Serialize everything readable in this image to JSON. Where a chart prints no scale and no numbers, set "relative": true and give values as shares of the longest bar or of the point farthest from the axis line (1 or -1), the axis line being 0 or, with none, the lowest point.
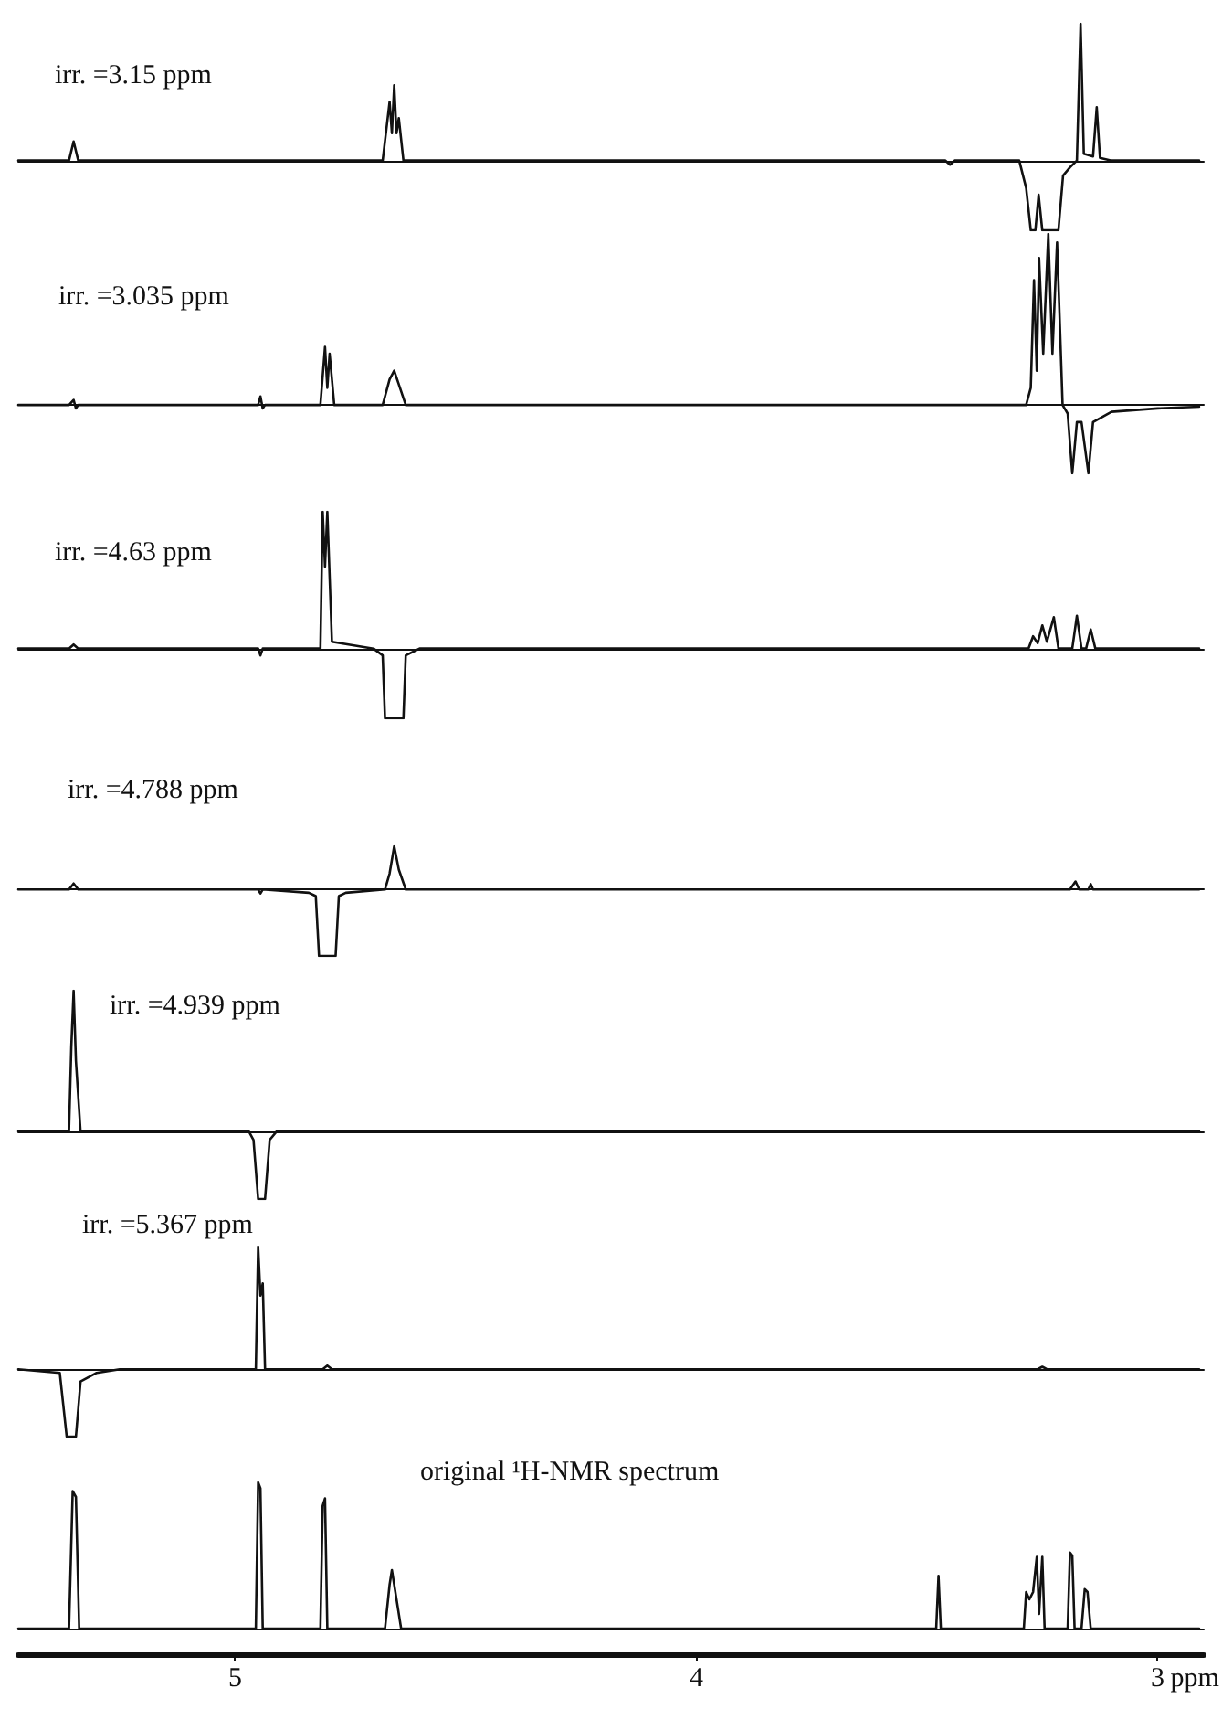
{
  "chart_data": [
    {
      "type": "line",
      "title": "irr. =3.15 ppm",
      "color": "#111111",
      "relative": true,
      "xlim": [
        5.47,
        2.9
      ],
      "tick_labels": false,
      "x": [
        5.47,
        5.36,
        5.35,
        5.34,
        4.68,
        4.665,
        4.66,
        4.655,
        4.65,
        4.645,
        4.635,
        3.46,
        3.45,
        3.44,
        3.3,
        3.285,
        3.275,
        3.265,
        3.258,
        3.25,
        3.215,
        3.205,
        3.19,
        3.175,
        3.167,
        3.16,
        3.14,
        3.132,
        3.125,
        3.1,
        2.91
      ],
      "values": [
        0,
        0,
        0.14,
        0,
        0,
        0.43,
        0.2,
        0.55,
        0.2,
        0.31,
        0,
        0,
        -0.03,
        0,
        0,
        -0.2,
        -0.51,
        -0.51,
        -0.25,
        -0.51,
        -0.51,
        -0.11,
        -0.05,
        0,
        1,
        0.05,
        0.03,
        0.39,
        0.02,
        0,
        0
      ]
    },
    {
      "type": "line",
      "title": "irr. =3.035 ppm",
      "color": "#111111",
      "relative": true,
      "xlim": [
        5.47,
        2.9
      ],
      "tick_labels": false,
      "x": [
        5.47,
        5.36,
        5.35,
        5.345,
        5.34,
        4.95,
        4.945,
        4.94,
        4.935,
        4.815,
        4.805,
        4.8,
        4.795,
        4.785,
        4.68,
        4.665,
        4.655,
        4.645,
        4.63,
        3.285,
        3.275,
        3.268,
        3.262,
        3.257,
        3.248,
        3.237,
        3.228,
        3.218,
        3.206,
        3.195,
        3.185,
        3.175,
        3.165,
        3.15,
        3.14,
        3.1,
        3.0,
        2.91
      ],
      "values": [
        0,
        0,
        0.03,
        -0.02,
        0,
        0,
        0.05,
        -0.02,
        0,
        0,
        0.34,
        0.1,
        0.3,
        0,
        0,
        0.15,
        0.2,
        0.12,
        0,
        0,
        0.1,
        0.73,
        0.2,
        0.86,
        0.3,
        1,
        0.3,
        0.95,
        0,
        -0.05,
        -0.4,
        -0.1,
        -0.1,
        -0.4,
        -0.1,
        -0.04,
        -0.02,
        -0.01
      ]
    },
    {
      "type": "line",
      "title": "irr. =4.63 ppm",
      "color": "#111111",
      "relative": true,
      "xlim": [
        5.47,
        2.9
      ],
      "tick_labels": false,
      "x": [
        5.47,
        5.36,
        5.35,
        5.34,
        4.95,
        4.945,
        4.94,
        4.815,
        4.81,
        4.805,
        4.8,
        4.79,
        4.7,
        4.68,
        4.675,
        4.635,
        4.63,
        4.6,
        3.28,
        3.27,
        3.26,
        3.25,
        3.24,
        3.225,
        3.215,
        3.185,
        3.175,
        3.165,
        3.155,
        3.145,
        3.135,
        2.91
      ],
      "values": [
        0,
        0,
        0.03,
        0,
        0,
        -0.05,
        0,
        0,
        1,
        0.6,
        1,
        0.05,
        0,
        -0.05,
        -0.51,
        -0.51,
        -0.05,
        0,
        0,
        0.09,
        0.04,
        0.17,
        0.05,
        0.23,
        0,
        0,
        0.24,
        0,
        0,
        0.14,
        0,
        0
      ]
    },
    {
      "type": "line",
      "title": "irr. =4.788 ppm",
      "color": "#111111",
      "relative": true,
      "xlim": [
        5.47,
        2.9
      ],
      "tick_labels": false,
      "x": [
        5.47,
        5.36,
        5.35,
        5.34,
        4.95,
        4.945,
        4.94,
        4.84,
        4.825,
        4.818,
        4.782,
        4.775,
        4.76,
        4.675,
        4.665,
        4.655,
        4.645,
        4.63,
        3.19,
        3.178,
        3.17,
        3.15,
        3.145,
        3.14,
        2.91
      ],
      "values": [
        0,
        0,
        0.09,
        0,
        0,
        -0.06,
        0,
        -0.05,
        -0.1,
        -1,
        -1,
        -0.1,
        -0.05,
        0,
        0.24,
        0.65,
        0.3,
        0,
        0,
        0.12,
        0,
        0,
        0.08,
        0,
        0
      ]
    },
    {
      "type": "line",
      "title": "irr. =4.939 ppm",
      "color": "#111111",
      "relative": true,
      "xlim": [
        5.47,
        2.9
      ],
      "tick_labels": false,
      "x": [
        5.47,
        5.36,
        5.355,
        5.35,
        5.345,
        5.335,
        4.97,
        4.96,
        4.95,
        4.935,
        4.925,
        4.91,
        2.91
      ],
      "values": [
        0,
        0,
        0.6,
        1,
        0.5,
        0,
        0,
        -0.06,
        -0.48,
        -0.48,
        -0.06,
        0,
        0
      ]
    },
    {
      "type": "line",
      "title": "irr. =5.367 ppm",
      "color": "#111111",
      "relative": true,
      "xlim": [
        5.47,
        2.9
      ],
      "tick_labels": false,
      "x": [
        5.47,
        5.38,
        5.365,
        5.345,
        5.335,
        5.3,
        5.25,
        4.955,
        4.95,
        4.945,
        4.94,
        4.935,
        4.81,
        4.8,
        4.79,
        3.26,
        3.25,
        3.24,
        2.91
      ],
      "values": [
        0,
        -0.03,
        -0.55,
        -0.55,
        -0.1,
        -0.03,
        0,
        0,
        1,
        0.6,
        0.7,
        0,
        0,
        0.03,
        0,
        0,
        0.02,
        0,
        0
      ]
    },
    {
      "type": "line",
      "title": "original ¹H-NMR spectrum",
      "color": "#111111",
      "relative": true,
      "xlim": [
        5.47,
        2.9
      ],
      "xticks": [
        5,
        4,
        3
      ],
      "xlabel": "ppm",
      "x": [
        5.47,
        5.36,
        5.352,
        5.345,
        5.338,
        4.955,
        4.95,
        4.945,
        4.94,
        4.815,
        4.81,
        4.805,
        4.8,
        4.675,
        4.665,
        4.66,
        4.655,
        4.65,
        4.64,
        3.48,
        3.475,
        3.47,
        3.29,
        3.285,
        3.278,
        3.27,
        3.262,
        3.257,
        3.25,
        3.245,
        3.195,
        3.19,
        3.185,
        3.18,
        3.165,
        3.158,
        3.152,
        3.145,
        2.91
      ],
      "values": [
        0,
        0,
        0.94,
        0.9,
        0,
        0,
        1,
        0.96,
        0,
        0,
        0.84,
        0.89,
        0,
        0,
        0.3,
        0.4,
        0.3,
        0.2,
        0,
        0,
        0.36,
        0,
        0,
        0.25,
        0.2,
        0.25,
        0.49,
        0.1,
        0.49,
        0,
        0,
        0.52,
        0.5,
        0,
        0,
        0.27,
        0.25,
        0,
        0
      ]
    }
  ]
}
